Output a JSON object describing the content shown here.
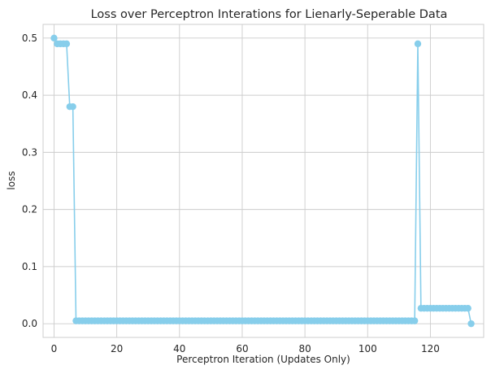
{
  "chart_data": {
    "type": "line",
    "title": "Loss over Perceptron Interations for Lienarly-Seperable Data",
    "xlabel": "Perceptron Iteration (Updates Only)",
    "ylabel": "loss",
    "xlim": [
      -3.5,
      137
    ],
    "ylim": [
      -0.024,
      0.524
    ],
    "xticks": [
      0,
      20,
      40,
      60,
      80,
      100,
      120
    ],
    "yticks": [
      0.0,
      0.1,
      0.2,
      0.3,
      0.4,
      0.5
    ],
    "xtick_labels": [
      "0",
      "20",
      "40",
      "60",
      "80",
      "100",
      "120"
    ],
    "ytick_labels": [
      "0.0",
      "0.1",
      "0.2",
      "0.3",
      "0.4",
      "0.5"
    ],
    "grid": true,
    "marker": "circle",
    "series": [
      {
        "color": "#87ceeb",
        "segments": [
          {
            "x": [
              0
            ],
            "y": [
              0.5
            ]
          },
          {
            "x_start": 1,
            "x_end": 4,
            "y": 0.49
          },
          {
            "x_start": 5,
            "x_end": 6,
            "y": 0.38
          },
          {
            "x_start": 7,
            "x_end": 115,
            "y": 0.005
          },
          {
            "x": [
              116
            ],
            "y": [
              0.49
            ]
          },
          {
            "x_start": 117,
            "x_end": 132,
            "y": 0.027
          },
          {
            "x": [
              133
            ],
            "y": [
              0.0
            ]
          }
        ]
      }
    ]
  }
}
